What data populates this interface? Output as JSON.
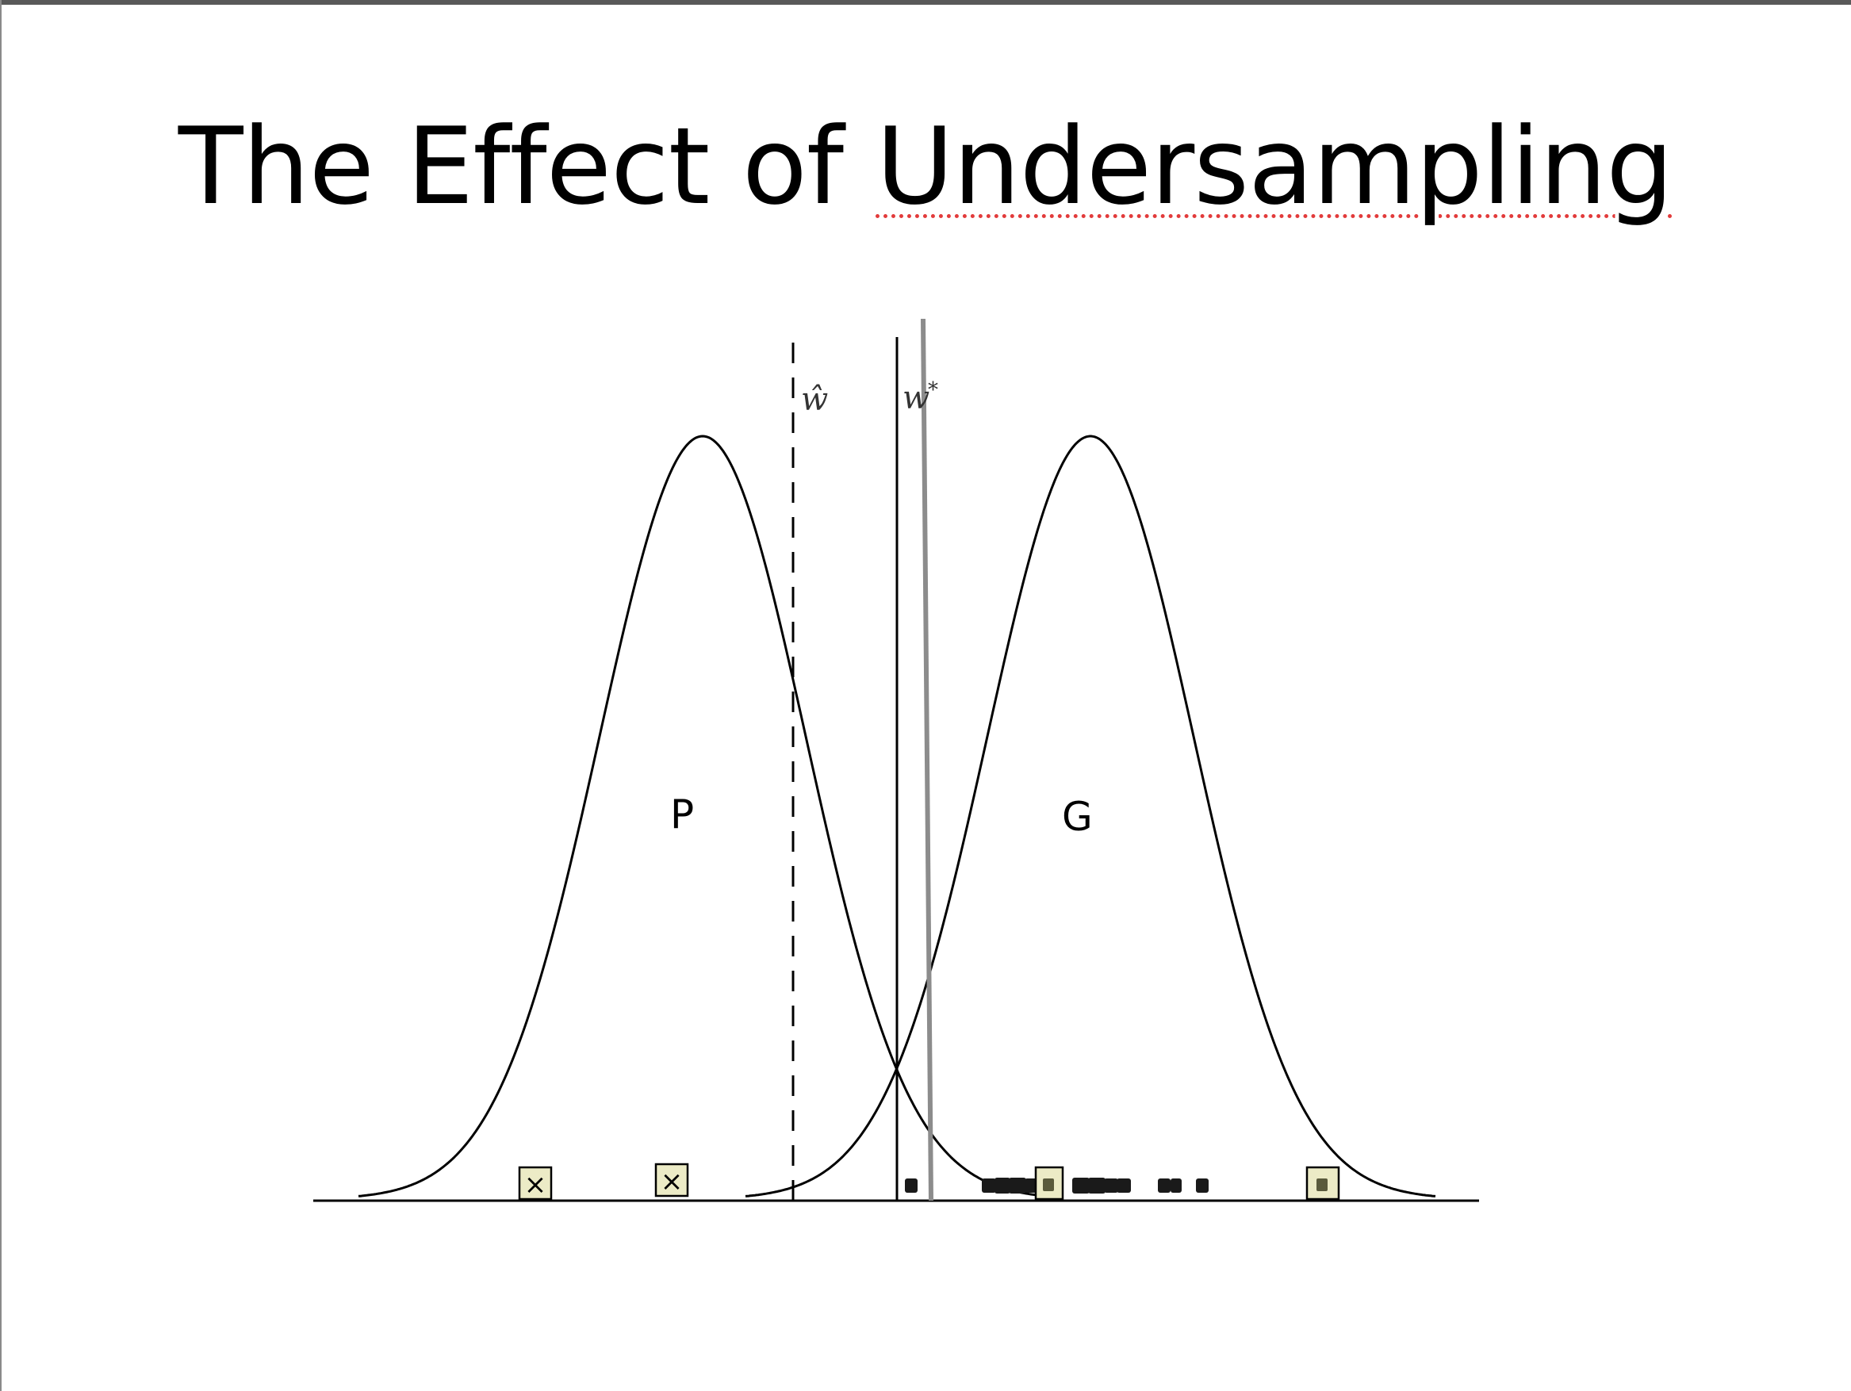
{
  "title": {
    "prefix": "The Effect of ",
    "underlined_word": "Undersampling"
  },
  "diagram": {
    "distribution_left_label": "P",
    "distribution_right_label": "G",
    "boundary_estimate_label": "ŵ",
    "boundary_true_label": "w",
    "boundary_true_superscript": "*",
    "sample_marker_glyph": "×",
    "colors": {
      "curve": "#000000",
      "shifted_boundary": "#8c8c8c",
      "sample_box_fill": "#ecebc6",
      "dense_marker": "#1a1a1a",
      "spellcheck_underline": "#e23b3b"
    }
  }
}
